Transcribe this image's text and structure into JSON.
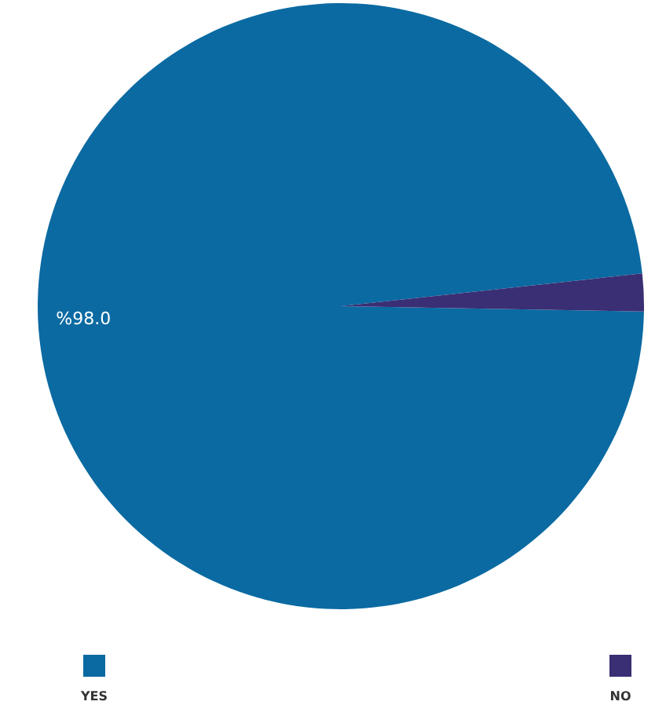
{
  "chart_data": {
    "type": "pie",
    "categories": [
      "YES",
      "NO"
    ],
    "values": [
      98,
      2
    ],
    "colors": [
      "#0b6aa2",
      "#3a2e74"
    ],
    "value_labels": [
      "%98.0",
      null
    ],
    "legend": "bottom"
  }
}
